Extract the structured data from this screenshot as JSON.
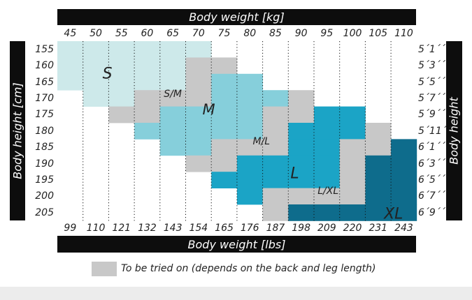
{
  "chart_data": {
    "type": "heatmap",
    "title": "",
    "xlabel_top": "Body weight [kg]",
    "xlabel_bottom": "Body weight [lbs]",
    "ylabel_left": "Body height [cm]",
    "ylabel_right": "Body height",
    "x_kg": [
      "45",
      "50",
      "55",
      "60",
      "65",
      "70",
      "75",
      "80",
      "85",
      "90",
      "95",
      "100",
      "105",
      "110"
    ],
    "x_lbs": [
      "99",
      "110",
      "121",
      "132",
      "143",
      "154",
      "165",
      "176",
      "187",
      "198",
      "209",
      "220",
      "231",
      "243"
    ],
    "y_cm": [
      "155",
      "160",
      "165",
      "170",
      "175",
      "180",
      "185",
      "190",
      "195",
      "200",
      "205"
    ],
    "y_ft": [
      "5´1´´",
      "5´3´´",
      "5´5´´",
      "5´7´´",
      "5´9´´",
      "5´11´´",
      "6´1´´",
      "6´3´´",
      "6´5´´",
      "6´7´´",
      "6´9´´"
    ],
    "size_codes": [
      "S",
      "S/M",
      "M",
      "M/L",
      "L",
      "L/XL",
      "XL"
    ],
    "size_labels": {
      "S": "S",
      "SM": "S/M",
      "M": "M",
      "ML": "M/L",
      "L": "L",
      "LXL": "L/XL",
      "XL": "XL"
    },
    "colors": {
      "S": "#cde9ea",
      "M": "#86cfdb",
      "L": "#1ba4c6",
      "XL": "#0e6c8c",
      "SM": "#c8c8c8",
      "ML": "#c8c8c8",
      "LXL": "#c8c8c8",
      "none": "#ffffff",
      "dots": "#111111"
    },
    "grid": [
      [
        "S",
        "S",
        "S",
        "S",
        "S",
        "S",
        "",
        "",
        "",
        "",
        "",
        "",
        "",
        ""
      ],
      [
        "S",
        "S",
        "S",
        "S",
        "S",
        "SM",
        "SM",
        "",
        "",
        "",
        "",
        "",
        "",
        ""
      ],
      [
        "S",
        "S",
        "S",
        "S",
        "S",
        "SM",
        "M",
        "M",
        "",
        "",
        "",
        "",
        "",
        ""
      ],
      [
        "",
        "S",
        "S",
        "SM",
        "SM",
        "SM",
        "M",
        "M",
        "M",
        "ML",
        "",
        "",
        "",
        ""
      ],
      [
        "",
        "",
        "SM",
        "SM",
        "M",
        "M",
        "M",
        "M",
        "ML",
        "ML",
        "L",
        "L",
        "",
        ""
      ],
      [
        "",
        "",
        "",
        "M",
        "M",
        "M",
        "M",
        "M",
        "ML",
        "L",
        "L",
        "L",
        "LXL",
        ""
      ],
      [
        "",
        "",
        "",
        "",
        "M",
        "M",
        "ML",
        "ML",
        "ML",
        "L",
        "L",
        "LXL",
        "LXL",
        "XL"
      ],
      [
        "",
        "",
        "",
        "",
        "",
        "ML",
        "ML",
        "L",
        "L",
        "L",
        "L",
        "LXL",
        "XL",
        "XL"
      ],
      [
        "",
        "",
        "",
        "",
        "",
        "",
        "L",
        "L",
        "L",
        "L",
        "L",
        "LXL",
        "XL",
        "XL"
      ],
      [
        "",
        "",
        "",
        "",
        "",
        "",
        "",
        "L",
        "LXL",
        "LXL",
        "LXL",
        "LXL",
        "XL",
        "XL"
      ],
      [
        "",
        "",
        "",
        "",
        "",
        "",
        "",
        "",
        "LXL",
        "XL",
        "XL",
        "XL",
        "XL",
        "XL"
      ]
    ],
    "zone_label_cells": {
      "S": [
        2,
        1.95
      ],
      "SM": [
        3.25,
        4.5
      ],
      "M": [
        4.2,
        5.9
      ],
      "ML": [
        6.15,
        7.95
      ],
      "L": [
        8.1,
        9.25
      ],
      "LXL": [
        9.2,
        10.55
      ],
      "XL": [
        10.6,
        13.1
      ]
    },
    "legend": "To be tried on (depends on the back and leg length)"
  }
}
